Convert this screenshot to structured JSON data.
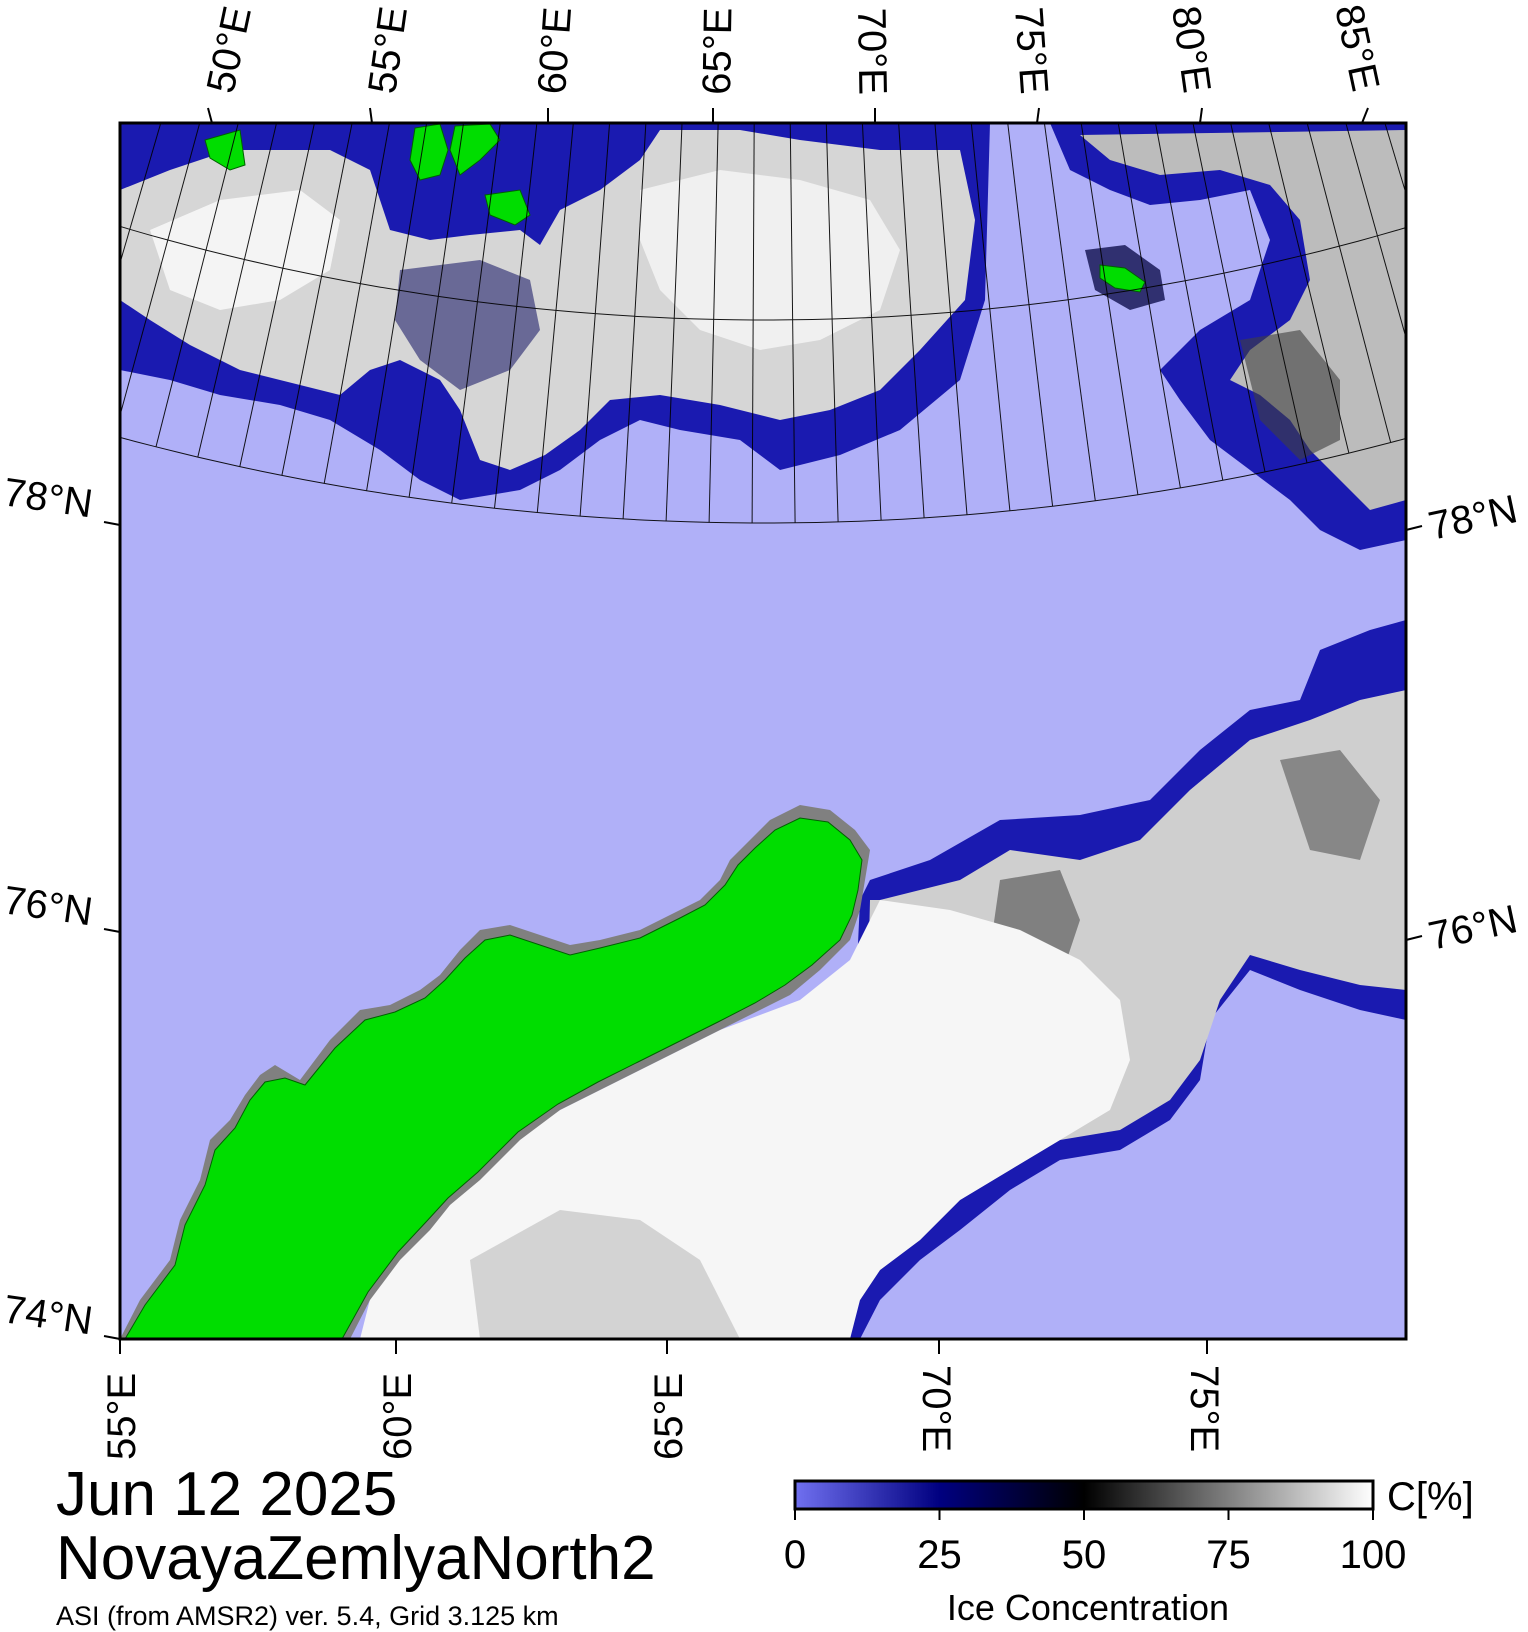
{
  "date": "Jun 12 2025",
  "region": "NovayaZemlyaNorth2",
  "product_line": "ASI (from AMSR2) ver. 5.4,  Grid 3.125 km",
  "colors": {
    "open_water": "#b0b0f8",
    "land": "#00dd00",
    "coast": "#808080",
    "frame": "#000000"
  },
  "axes": {
    "top_lon_labels": [
      "50°E",
      "55°E",
      "60°E",
      "65°E",
      "70°E",
      "75°E",
      "80°E",
      "85°E"
    ],
    "bottom_lon_labels": [
      "55°E",
      "60°E",
      "65°E",
      "70°E",
      "75°E"
    ],
    "left_lat_labels": [
      "78°N",
      "76°N",
      "74°N"
    ],
    "right_lat_labels": [
      "78°N",
      "76°N"
    ]
  },
  "colorbar": {
    "title": "Ice Concentration",
    "unit": "C[%]",
    "ticks": [
      "0",
      "25",
      "50",
      "75",
      "100"
    ],
    "stops": [
      "#7070f0",
      "#000080",
      "#000000",
      "#808080",
      "#ffffff"
    ]
  }
}
